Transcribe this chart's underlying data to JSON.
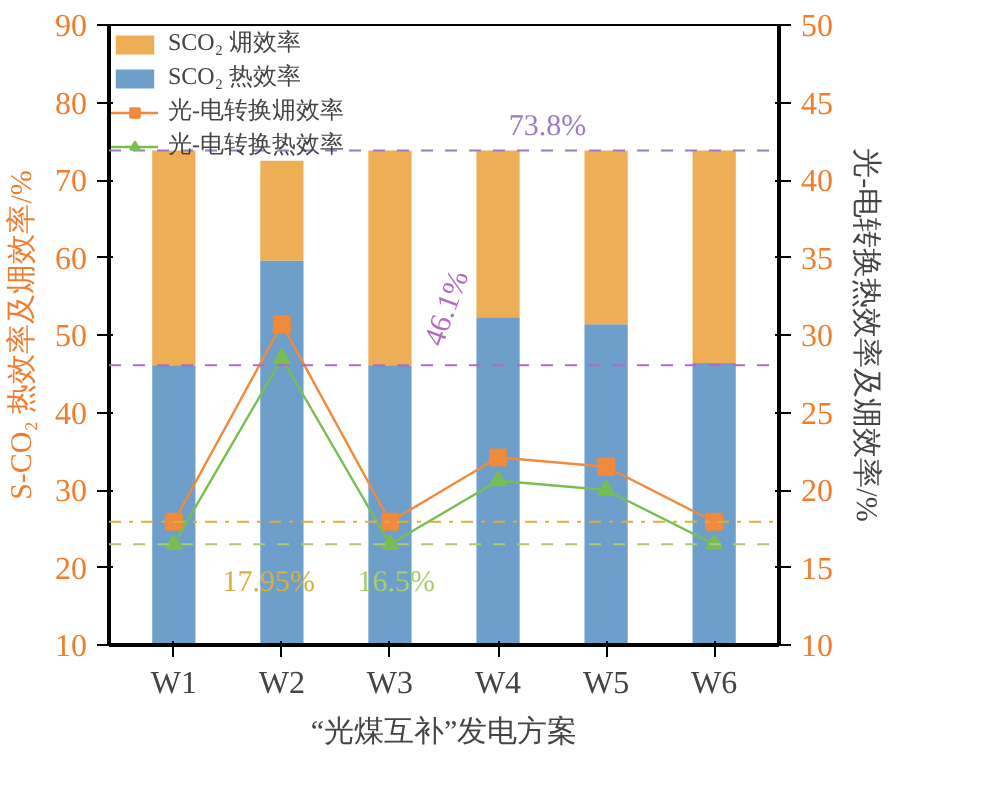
{
  "chart_data": {
    "type": "bar",
    "stacked": true,
    "xlabel": "“光煤互补”发电方案",
    "ylabel": "S-CO₂ 热效率及㶲效率/%",
    "y2label": "光-电转换热效率及㶲效率/%",
    "categories": [
      "W1",
      "W2",
      "W3",
      "W4",
      "W5",
      "W6"
    ],
    "series": [
      {
        "name": "SCO₂ 热效率",
        "color": "#6e9fcb",
        "values": [
          46.1,
          59.6,
          46.1,
          52.3,
          51.4,
          46.4
        ]
      },
      {
        "name": "SCO₂ 㶲效率",
        "color": "#eeae55",
        "values": [
          27.7,
          12.9,
          27.7,
          21.5,
          22.4,
          27.4
        ]
      },
      {
        "name": "光-电转换㶲效率",
        "type": "line",
        "axis": "y2",
        "marker": "square",
        "color": "#f08a3c",
        "values": [
          17.95,
          30.7,
          17.95,
          22.1,
          21.5,
          17.95
        ]
      },
      {
        "name": "光-电转换热效率",
        "type": "line",
        "axis": "y2",
        "marker": "triangle",
        "color": "#78be52",
        "values": [
          16.5,
          28.5,
          16.5,
          20.6,
          20.0,
          16.5
        ]
      }
    ],
    "ylim": [
      10,
      90
    ],
    "yticks": [
      10,
      20,
      30,
      40,
      50,
      60,
      70,
      80,
      90
    ],
    "y2lim": [
      10,
      50
    ],
    "y2ticks": [
      10,
      15,
      20,
      25,
      30,
      35,
      40,
      45,
      50
    ],
    "ref_lines": [
      {
        "axis": "y",
        "value": 73.8,
        "label": "73.8%",
        "color": "#9b7bc4",
        "line_style": "dashed"
      },
      {
        "axis": "y",
        "value": 46.1,
        "label": "46.1%",
        "color": "#b06cc0",
        "line_style": "dashed"
      },
      {
        "axis": "y2",
        "value": 17.95,
        "label": "17.95%",
        "color": "#d8b040",
        "line_style": "dashdot"
      },
      {
        "axis": "y2",
        "value": 16.5,
        "label": "16.5%",
        "color": "#a8cc70",
        "line_style": "dashed"
      }
    ],
    "legend": "top left",
    "grid": false
  }
}
